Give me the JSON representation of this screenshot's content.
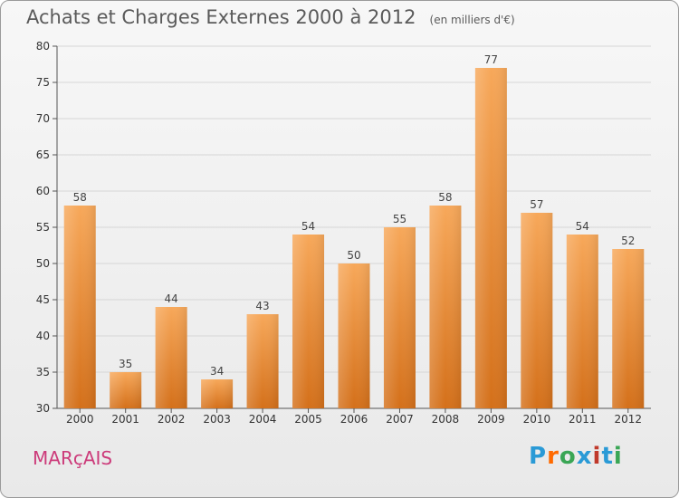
{
  "chart_data": {
    "type": "bar",
    "title": "Achats et Charges Externes 2000 à 2012",
    "subtitle": "(en milliers d'€)",
    "categories": [
      "2000",
      "2001",
      "2002",
      "2003",
      "2004",
      "2005",
      "2006",
      "2007",
      "2008",
      "2009",
      "2010",
      "2011",
      "2012"
    ],
    "values": [
      58,
      35,
      44,
      34,
      43,
      54,
      50,
      55,
      58,
      77,
      57,
      54,
      52
    ],
    "ylim": [
      30,
      80
    ],
    "yticks": [
      30,
      35,
      40,
      45,
      50,
      55,
      60,
      65,
      70,
      75,
      80
    ],
    "grid": true,
    "bar_color": "#f0963c"
  },
  "footer": {
    "commune": "MARçAIS",
    "brand": "Proxiti",
    "brand_colors": [
      "#2a9ad6",
      "#ff6a00",
      "#3aa655",
      "#2a9ad6",
      "#c0392b",
      "#2a9ad6",
      "#3aa655"
    ]
  }
}
